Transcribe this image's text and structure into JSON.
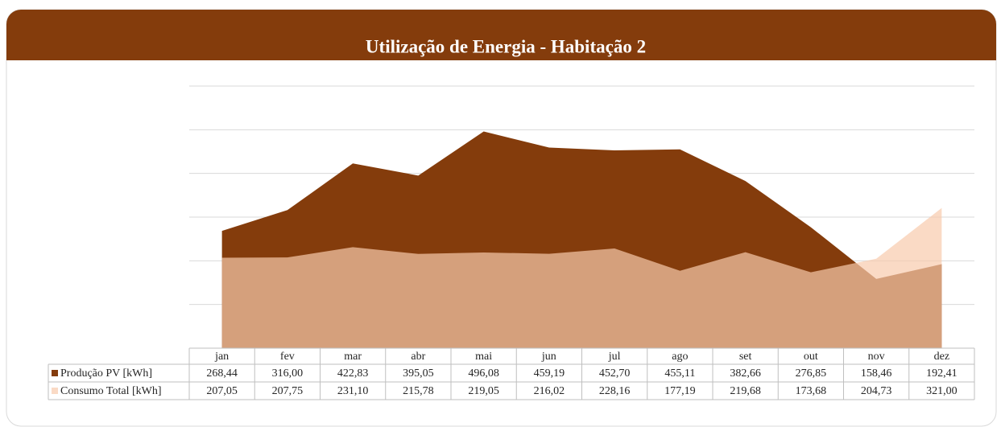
{
  "chart_data": {
    "type": "area",
    "title": "Utilização de Energia - Habitação 2",
    "categories": [
      "jan",
      "fev",
      "mar",
      "abr",
      "mai",
      "jun",
      "jul",
      "ago",
      "set",
      "out",
      "nov",
      "dez"
    ],
    "series": [
      {
        "name": "Produção PV [kWh]",
        "color": "#843c0c",
        "values": [
          268.44,
          316.0,
          422.83,
          395.05,
          496.08,
          459.19,
          452.7,
          455.11,
          382.66,
          276.85,
          158.46,
          192.41
        ],
        "value_labels": [
          "268,44",
          "316,00",
          "422,83",
          "395,05",
          "496,08",
          "459,19",
          "452,70",
          "455,11",
          "382,66",
          "276,85",
          "158,46",
          "192,41"
        ]
      },
      {
        "name": "Consumo Total [kWh]",
        "color": "#f8cbad",
        "opacity": 0.7,
        "values": [
          207.05,
          207.75,
          231.1,
          215.78,
          219.05,
          216.02,
          228.16,
          177.19,
          219.68,
          173.68,
          204.73,
          321.0
        ],
        "value_labels": [
          "207,05",
          "207,75",
          "231,10",
          "215,78",
          "219,05",
          "216,02",
          "228,16",
          "177,19",
          "219,68",
          "173,68",
          "204,73",
          "321,00"
        ]
      }
    ],
    "ylim": [
      0,
      600
    ],
    "yticks": [
      0,
      100,
      200,
      300,
      400,
      500,
      600
    ],
    "grid": true
  }
}
